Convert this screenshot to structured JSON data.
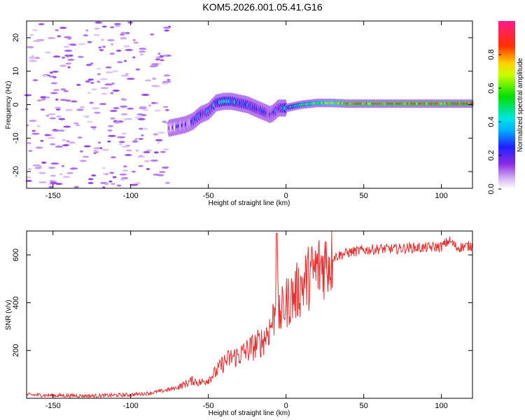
{
  "title": "KOM5.2026.001.05.41.G16",
  "colors": {
    "snr_line": "#e83030",
    "panel_border": "#000000"
  },
  "chart_data": [
    {
      "type": "heatmap",
      "title": "KOM5.2026.001.05.41.G16",
      "xlabel": "Height of straight line (km)",
      "ylabel": "Frequency (Hz)",
      "xlim": [
        -167,
        120
      ],
      "ylim": [
        -25,
        25
      ],
      "xticks": [
        -150,
        -100,
        -50,
        0,
        50,
        100
      ],
      "yticks": [
        -20,
        -10,
        0,
        10,
        20
      ],
      "colorbar": {
        "label": "Normalized spectral amplitude",
        "range": [
          0,
          1
        ],
        "ticks": [
          "0.0",
          "0.2",
          "0.4",
          "0.6",
          "0.8"
        ],
        "colormap": "rainbow (white-violet-blue-cyan-green-yellow-red-magenta)"
      },
      "ridge": {
        "x": [
          -75,
          -70,
          -65,
          -60,
          -55,
          -50,
          -45,
          -40,
          -35,
          -30,
          -25,
          -20,
          -15,
          -10,
          -7,
          -5,
          0,
          10,
          20,
          30,
          40,
          60,
          80,
          100,
          120
        ],
        "frequency": [
          -7,
          -6.5,
          -6,
          -5,
          -3,
          -2,
          0.5,
          1,
          1,
          0.5,
          0,
          -1,
          -2,
          -3,
          -2,
          -1,
          -1,
          0,
          0.5,
          0.5,
          0.3,
          0.3,
          0.3,
          0.3,
          0.3
        ],
        "amplitude": [
          0.1,
          0.12,
          0.15,
          0.2,
          0.25,
          0.25,
          0.3,
          0.35,
          0.35,
          0.3,
          0.3,
          0.25,
          0.25,
          0.2,
          0.2,
          0.25,
          0.35,
          0.5,
          0.6,
          0.7,
          0.8,
          0.8,
          0.85,
          0.85,
          0.9
        ]
      },
      "noise_region": {
        "x_range": [
          -167,
          -80
        ],
        "amplitude": "low (0.0-0.1)"
      }
    },
    {
      "type": "line",
      "xlabel": "Height of straight line (km)",
      "ylabel": "SNR (v/v)",
      "xlim": [
        -167,
        120
      ],
      "ylim": [
        0,
        700
      ],
      "xticks": [
        -150,
        -100,
        -50,
        0,
        50,
        100
      ],
      "yticks": [
        200,
        400,
        600
      ],
      "series": [
        {
          "x": [
            -167,
            -150,
            -125,
            -100,
            -90,
            -80,
            -70,
            -65,
            -60,
            -55,
            -50,
            -45,
            -40,
            -35,
            -30,
            -25,
            -20,
            -15,
            -10,
            -7,
            -6,
            -5,
            -3,
            0,
            5,
            10,
            15,
            20,
            25,
            30,
            35,
            40,
            50,
            60,
            70,
            80,
            90,
            100,
            105,
            110,
            120
          ],
          "y": [
            15,
            12,
            10,
            15,
            20,
            30,
            45,
            60,
            75,
            65,
            80,
            110,
            150,
            170,
            180,
            200,
            220,
            240,
            300,
            360,
            680,
            330,
            360,
            400,
            430,
            470,
            510,
            540,
            570,
            590,
            600,
            610,
            620,
            625,
            625,
            630,
            630,
            635,
            660,
            630,
            640
          ]
        }
      ]
    }
  ]
}
